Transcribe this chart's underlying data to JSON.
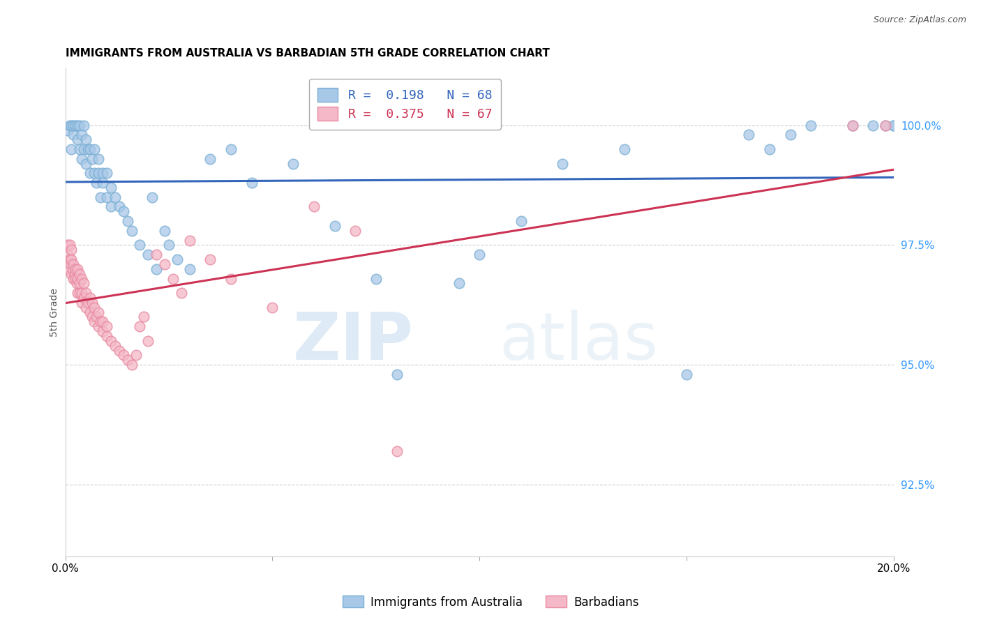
{
  "title": "IMMIGRANTS FROM AUSTRALIA VS BARBADIAN 5TH GRADE CORRELATION CHART",
  "source": "Source: ZipAtlas.com",
  "ylabel": "5th Grade",
  "xlim": [
    0.0,
    20.0
  ],
  "ylim": [
    91.0,
    101.2
  ],
  "blue_color": "#a8c8e8",
  "blue_edge_color": "#7aafd4",
  "pink_color": "#f4b8c8",
  "pink_edge_color": "#e88aa0",
  "blue_line_color": "#3366bb",
  "pink_line_color": "#cc3355",
  "legend_blue_r": "R =  0.198",
  "legend_blue_n": "N = 68",
  "legend_pink_r": "R =  0.375",
  "legend_pink_n": "N = 67",
  "legend_label_blue": "Immigrants from Australia",
  "legend_label_pink": "Barbadians",
  "watermark_zip": "ZIP",
  "watermark_atlas": "atlas",
  "ytick_vals": [
    92.5,
    95.0,
    97.5,
    100.0
  ],
  "ytick_labels": [
    "92.5%",
    "95.0%",
    "97.5%",
    "100.0%"
  ],
  "blue_x": [
    0.05,
    0.1,
    0.15,
    0.15,
    0.2,
    0.2,
    0.25,
    0.3,
    0.3,
    0.35,
    0.35,
    0.4,
    0.4,
    0.45,
    0.45,
    0.5,
    0.5,
    0.55,
    0.6,
    0.6,
    0.65,
    0.7,
    0.7,
    0.75,
    0.8,
    0.8,
    0.85,
    0.9,
    0.9,
    1.0,
    1.0,
    1.1,
    1.1,
    1.2,
    1.3,
    1.4,
    1.5,
    1.6,
    1.8,
    2.0,
    2.1,
    2.2,
    2.4,
    2.5,
    2.7,
    3.0,
    3.5,
    4.0,
    4.5,
    5.5,
    6.5,
    7.5,
    8.0,
    9.5,
    10.0,
    11.0,
    12.0,
    13.5,
    15.0,
    16.5,
    17.0,
    17.5,
    18.0,
    19.0,
    19.5,
    19.8,
    20.0,
    20.0
  ],
  "blue_y": [
    99.9,
    100.0,
    100.0,
    99.5,
    99.8,
    100.0,
    100.0,
    99.7,
    100.0,
    99.5,
    100.0,
    99.3,
    99.8,
    99.5,
    100.0,
    99.2,
    99.7,
    99.5,
    99.0,
    99.5,
    99.3,
    99.0,
    99.5,
    98.8,
    99.0,
    99.3,
    98.5,
    98.8,
    99.0,
    98.5,
    99.0,
    98.3,
    98.7,
    98.5,
    98.3,
    98.2,
    98.0,
    97.8,
    97.5,
    97.3,
    98.5,
    97.0,
    97.8,
    97.5,
    97.2,
    97.0,
    99.3,
    99.5,
    98.8,
    99.2,
    97.9,
    96.8,
    94.8,
    96.7,
    97.3,
    98.0,
    99.2,
    99.5,
    94.8,
    99.8,
    99.5,
    99.8,
    100.0,
    100.0,
    100.0,
    100.0,
    100.0,
    100.0
  ],
  "pink_x": [
    0.05,
    0.05,
    0.08,
    0.1,
    0.1,
    0.12,
    0.15,
    0.15,
    0.15,
    0.18,
    0.2,
    0.2,
    0.22,
    0.25,
    0.25,
    0.28,
    0.3,
    0.3,
    0.3,
    0.35,
    0.35,
    0.35,
    0.4,
    0.4,
    0.4,
    0.45,
    0.45,
    0.5,
    0.5,
    0.55,
    0.6,
    0.6,
    0.65,
    0.65,
    0.7,
    0.7,
    0.75,
    0.8,
    0.8,
    0.85,
    0.9,
    0.9,
    1.0,
    1.0,
    1.1,
    1.2,
    1.3,
    1.4,
    1.5,
    1.6,
    1.7,
    1.8,
    1.9,
    2.0,
    2.2,
    2.4,
    2.6,
    2.8,
    3.0,
    3.5,
    4.0,
    5.0,
    6.0,
    7.0,
    8.0,
    19.0,
    19.8
  ],
  "pink_y": [
    97.3,
    97.5,
    97.0,
    97.2,
    97.5,
    97.1,
    96.9,
    97.2,
    97.4,
    97.0,
    96.8,
    97.1,
    96.9,
    97.0,
    96.8,
    96.7,
    96.5,
    96.8,
    97.0,
    96.5,
    96.7,
    96.9,
    96.3,
    96.5,
    96.8,
    96.4,
    96.7,
    96.2,
    96.5,
    96.3,
    96.1,
    96.4,
    96.0,
    96.3,
    95.9,
    96.2,
    96.0,
    95.8,
    96.1,
    95.9,
    95.7,
    95.9,
    95.6,
    95.8,
    95.5,
    95.4,
    95.3,
    95.2,
    95.1,
    95.0,
    95.2,
    95.8,
    96.0,
    95.5,
    97.3,
    97.1,
    96.8,
    96.5,
    97.6,
    97.2,
    96.8,
    96.2,
    98.3,
    97.8,
    93.2,
    100.0,
    100.0
  ]
}
